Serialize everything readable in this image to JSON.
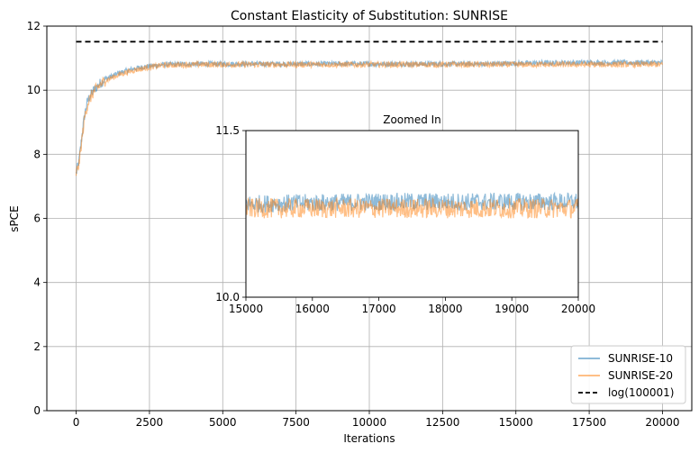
{
  "chart_data": [
    {
      "type": "line",
      "title": "Constant Elasticity of Substitution: SUNRISE",
      "xlabel": "Iterations",
      "ylabel": "sPCE",
      "xlim": [
        -1000,
        21000
      ],
      "ylim": [
        0,
        12
      ],
      "xticks": [
        0,
        2500,
        5000,
        7500,
        10000,
        12500,
        15000,
        17500,
        20000
      ],
      "yticks": [
        0,
        2,
        4,
        6,
        8,
        10,
        12
      ],
      "grid": true,
      "legend_position": "bottom-right",
      "series": [
        {
          "name": "SUNRISE-10",
          "color": "#1f77b4",
          "x": [
            0,
            100,
            200,
            300,
            400,
            600,
            800,
            1000,
            1500,
            2000,
            2500,
            3000,
            4000,
            5000,
            6000,
            8000,
            10000,
            12000,
            14000,
            15000,
            16000,
            17000,
            18000,
            19000,
            20000
          ],
          "values": [
            7.4,
            7.8,
            8.6,
            9.3,
            9.7,
            10.0,
            10.2,
            10.35,
            10.55,
            10.68,
            10.75,
            10.8,
            10.82,
            10.82,
            10.82,
            10.82,
            10.82,
            10.82,
            10.82,
            10.84,
            10.85,
            10.86,
            10.86,
            10.86,
            10.86
          ],
          "noise": 0.08
        },
        {
          "name": "SUNRISE-20",
          "color": "#ff7f0e",
          "x": [
            0,
            100,
            200,
            300,
            400,
            600,
            800,
            1000,
            1500,
            2000,
            2500,
            3000,
            4000,
            5000,
            6000,
            8000,
            10000,
            12000,
            14000,
            15000,
            16000,
            17000,
            18000,
            19000,
            20000
          ],
          "values": [
            7.4,
            7.7,
            8.5,
            9.2,
            9.6,
            9.95,
            10.15,
            10.3,
            10.5,
            10.63,
            10.72,
            10.78,
            10.8,
            10.8,
            10.8,
            10.8,
            10.8,
            10.8,
            10.8,
            10.8,
            10.8,
            10.8,
            10.8,
            10.8,
            10.8
          ],
          "noise": 0.09
        },
        {
          "name": "log(100001)",
          "color": "#000000",
          "dashed": true,
          "x": [
            0,
            20000
          ],
          "values": [
            11.513,
            11.513
          ]
        }
      ]
    },
    {
      "type": "line",
      "title": "Zoomed In",
      "inset": true,
      "xlim": [
        15000,
        20000
      ],
      "ylim": [
        10,
        11.5
      ],
      "xticks": [
        15000,
        16000,
        17000,
        18000,
        19000,
        20000
      ],
      "yticks": [
        10.0,
        11.5
      ],
      "ytick_labels": [
        "10.0",
        "11.5"
      ],
      "grid": false,
      "series": [
        {
          "name": "SUNRISE-10",
          "color": "#1f77b4",
          "x": [
            15000,
            16000,
            17000,
            18000,
            19000,
            20000
          ],
          "values": [
            10.84,
            10.85,
            10.86,
            10.86,
            10.86,
            10.86
          ],
          "noise": 0.08
        },
        {
          "name": "SUNRISE-20",
          "color": "#ff7f0e",
          "x": [
            15000,
            16000,
            17000,
            18000,
            19000,
            20000
          ],
          "values": [
            10.8,
            10.8,
            10.8,
            10.8,
            10.8,
            10.8
          ],
          "noise": 0.09
        }
      ]
    }
  ]
}
